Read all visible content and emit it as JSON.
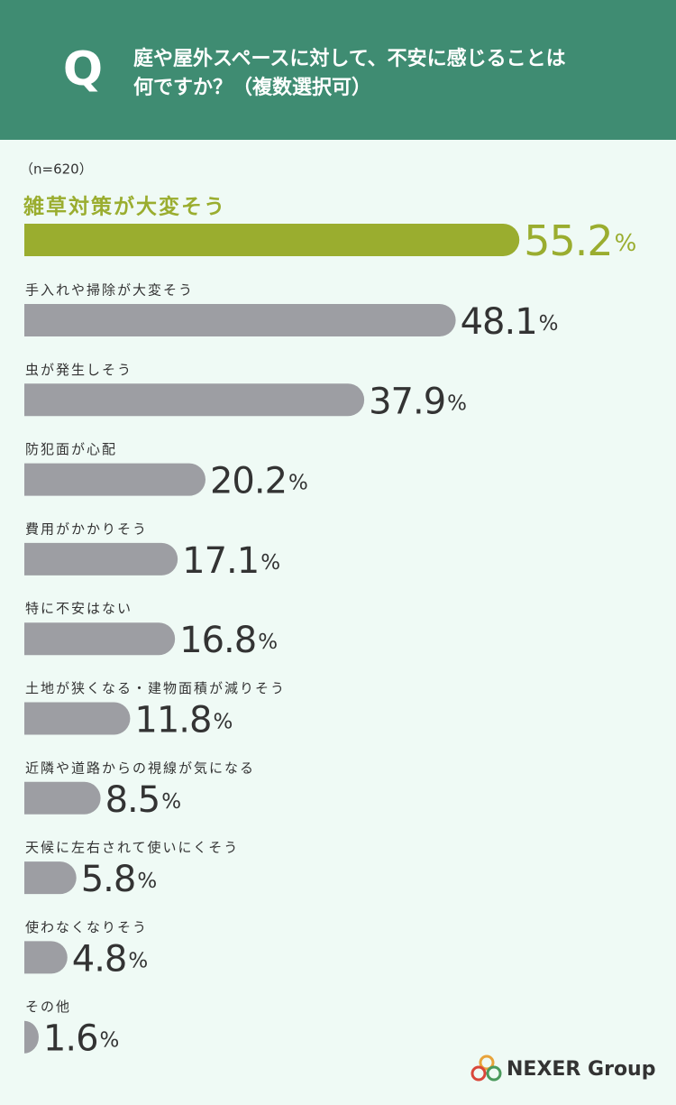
{
  "chart_data": {
    "type": "bar",
    "question_mark": "Q",
    "title": [
      "庭や屋外スペースに対して、不安に感じることは",
      "何ですか？（複数選択可）"
    ],
    "sample_size": "（n=620）",
    "categories": [
      "雑草対策が大変そう",
      "手入れや掃除が大変そう",
      "虫が発生しそう",
      "防犯面が心配",
      "費用がかかりそう",
      "特に不安はない",
      "土地が狭くなる・建物面積が減りそう",
      "近隣や道路からの視線が気になる",
      "天候に左右されて使いにくそう",
      "使わなくなりそう",
      "その他"
    ],
    "values": [
      55.2,
      48.1,
      37.9,
      20.2,
      17.1,
      16.8,
      11.8,
      8.5,
      5.8,
      4.8,
      1.6
    ],
    "unit": "%",
    "bar_colors": [
      "#9aad2f",
      "#9d9ea3",
      "#9d9ea3",
      "#9d9ea3",
      "#9d9ea3",
      "#9d9ea3",
      "#9d9ea3",
      "#9d9ea3",
      "#9d9ea3",
      "#9d9ea3",
      "#9d9ea3"
    ],
    "logo_text": "NEXER Group"
  }
}
